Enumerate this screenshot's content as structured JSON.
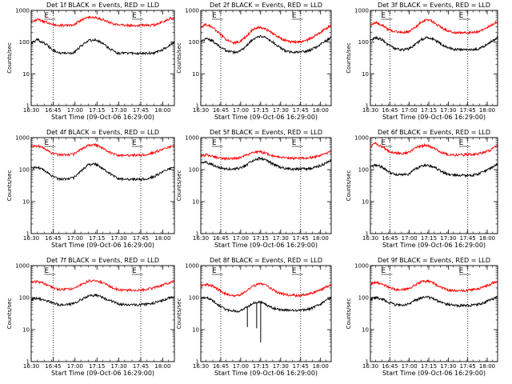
{
  "chart_data": {
    "type": "line",
    "grid": false,
    "yscale": "log",
    "ylim": [
      1,
      1000
    ],
    "ylabel": "Counts/sec",
    "xlabel": "Start Time (09-Oct-06 16:29:00)",
    "x_tick_labels": [
      "16:30",
      "16:45",
      "17:00",
      "17:15",
      "17:30",
      "17:45",
      "18:00"
    ],
    "y_tick_labels": [
      "1",
      "10",
      "100",
      "1000"
    ],
    "xlim_minutes_after_start": [
      1,
      99
    ],
    "marker_label": "E",
    "colors": {
      "events": "#000000",
      "lld": "#ff0000",
      "markers": "#000000"
    },
    "panels": [
      {
        "title": "Det 1f BLACK = Events, RED = LLD",
        "markers": [
          16,
          76
        ],
        "events": {
          "x": [
            1,
            5,
            10,
            15,
            20,
            25,
            30,
            35,
            40,
            45,
            50,
            55,
            60,
            65,
            70,
            75,
            80,
            85,
            90,
            95,
            99
          ],
          "y": [
            90,
            120,
            95,
            60,
            45,
            45,
            45,
            75,
            110,
            120,
            90,
            60,
            45,
            45,
            45,
            45,
            45,
            45,
            55,
            75,
            100
          ]
        },
        "lld": {
          "x": [
            1,
            5,
            10,
            15,
            20,
            25,
            30,
            35,
            40,
            45,
            50,
            55,
            60,
            65,
            70,
            75,
            80,
            85,
            90,
            95,
            99
          ],
          "y": [
            420,
            520,
            450,
            360,
            340,
            340,
            350,
            480,
            600,
            620,
            520,
            400,
            350,
            340,
            340,
            340,
            340,
            350,
            420,
            520,
            600
          ]
        }
      },
      {
        "title": "Det 2f BLACK = Events, RED = LLD",
        "markers": [
          16,
          76
        ],
        "events": {
          "x": [
            1,
            5,
            10,
            15,
            20,
            25,
            30,
            35,
            40,
            45,
            50,
            55,
            60,
            65,
            70,
            75,
            80,
            85,
            90,
            95,
            99
          ],
          "y": [
            100,
            130,
            110,
            75,
            55,
            48,
            50,
            75,
            120,
            155,
            140,
            100,
            70,
            52,
            48,
            48,
            50,
            60,
            80,
            110,
            140
          ]
        },
        "lld": {
          "x": [
            1,
            5,
            10,
            15,
            20,
            25,
            30,
            35,
            40,
            45,
            50,
            55,
            60,
            65,
            70,
            75,
            80,
            85,
            90,
            95,
            99
          ],
          "y": [
            290,
            360,
            300,
            190,
            120,
            95,
            100,
            150,
            250,
            300,
            260,
            190,
            140,
            110,
            100,
            100,
            110,
            140,
            190,
            270,
            340
          ]
        }
      },
      {
        "title": "Det 3f BLACK = Events, RED = LLD",
        "markers": [
          16,
          76
        ],
        "events": {
          "x": [
            1,
            5,
            10,
            15,
            20,
            25,
            30,
            35,
            40,
            45,
            50,
            55,
            60,
            65,
            70,
            75,
            80,
            85,
            90,
            95,
            99
          ],
          "y": [
            110,
            140,
            120,
            80,
            62,
            58,
            60,
            80,
            120,
            140,
            120,
            90,
            70,
            60,
            58,
            58,
            58,
            62,
            80,
            110,
            140
          ]
        },
        "lld": {
          "x": [
            1,
            5,
            10,
            15,
            20,
            25,
            30,
            35,
            40,
            45,
            50,
            55,
            60,
            65,
            70,
            75,
            80,
            85,
            90,
            95,
            99
          ],
          "y": [
            330,
            420,
            340,
            250,
            210,
            200,
            210,
            280,
            430,
            520,
            420,
            300,
            230,
            200,
            195,
            195,
            200,
            220,
            280,
            360,
            440
          ]
        }
      },
      {
        "title": "Det 4f BLACK = Events, RED = LLD",
        "markers": [
          16,
          76
        ],
        "events": {
          "x": [
            1,
            5,
            10,
            15,
            20,
            25,
            30,
            35,
            40,
            45,
            50,
            55,
            60,
            65,
            70,
            75,
            80,
            85,
            90,
            95,
            99
          ],
          "y": [
            110,
            120,
            95,
            65,
            50,
            50,
            55,
            90,
            140,
            150,
            110,
            75,
            55,
            50,
            50,
            50,
            52,
            60,
            80,
            100,
            120
          ]
        },
        "lld": {
          "x": [
            1,
            5,
            10,
            15,
            20,
            25,
            30,
            35,
            40,
            45,
            50,
            55,
            60,
            65,
            70,
            75,
            80,
            85,
            90,
            95,
            99
          ],
          "y": [
            520,
            560,
            460,
            330,
            290,
            285,
            300,
            430,
            560,
            600,
            480,
            340,
            290,
            280,
            280,
            285,
            300,
            340,
            410,
            480,
            560
          ]
        }
      },
      {
        "title": "Det 5f BLACK = Events, RED = LLD",
        "markers": [
          16,
          76
        ],
        "events": {
          "x": [
            1,
            5,
            10,
            15,
            20,
            25,
            30,
            35,
            40,
            45,
            50,
            55,
            60,
            65,
            70,
            75,
            80,
            85,
            90,
            95,
            99
          ],
          "y": [
            160,
            170,
            140,
            115,
            105,
            105,
            110,
            140,
            190,
            230,
            200,
            150,
            120,
            108,
            105,
            105,
            105,
            110,
            130,
            160,
            200
          ]
        },
        "lld": {
          "x": [
            1,
            5,
            10,
            15,
            20,
            25,
            30,
            35,
            40,
            45,
            50,
            55,
            60,
            65,
            70,
            75,
            80,
            85,
            90,
            95,
            99
          ],
          "y": [
            260,
            290,
            260,
            230,
            225,
            225,
            235,
            280,
            340,
            370,
            320,
            270,
            240,
            230,
            228,
            228,
            230,
            240,
            270,
            310,
            370
          ]
        }
      },
      {
        "title": "Det 6f BLACK = Events, RED = LLD",
        "markers": [
          16,
          76
        ],
        "events": {
          "x": [
            1,
            5,
            10,
            15,
            20,
            25,
            30,
            35,
            40,
            45,
            50,
            55,
            60,
            65,
            70,
            75,
            80,
            85,
            90,
            95,
            99
          ],
          "y": [
            120,
            140,
            120,
            85,
            70,
            68,
            72,
            100,
            130,
            140,
            120,
            90,
            72,
            68,
            66,
            66,
            68,
            75,
            95,
            120,
            150
          ]
        },
        "lld": {
          "x": [
            1,
            5,
            10,
            15,
            20,
            25,
            30,
            35,
            40,
            45,
            50,
            55,
            60,
            65,
            70,
            75,
            80,
            85,
            90,
            95,
            99
          ],
          "y": [
            520,
            660,
            520,
            380,
            330,
            320,
            340,
            450,
            560,
            580,
            470,
            350,
            300,
            290,
            290,
            295,
            300,
            320,
            360,
            440,
            560
          ]
        }
      },
      {
        "title": "Det 7f BLACK = Events, RED = LLD",
        "markers": [
          16,
          76
        ],
        "events": {
          "x": [
            1,
            5,
            10,
            15,
            20,
            25,
            30,
            35,
            40,
            45,
            50,
            55,
            60,
            65,
            70,
            75,
            80,
            85,
            90,
            95,
            99
          ],
          "y": [
            90,
            95,
            85,
            70,
            60,
            60,
            65,
            85,
            110,
            120,
            100,
            80,
            65,
            60,
            60,
            60,
            62,
            68,
            80,
            95,
            110
          ]
        },
        "lld": {
          "x": [
            1,
            5,
            10,
            15,
            20,
            25,
            30,
            35,
            40,
            45,
            50,
            55,
            60,
            65,
            70,
            75,
            80,
            85,
            90,
            95,
            99
          ],
          "y": [
            300,
            320,
            280,
            210,
            180,
            180,
            190,
            250,
            330,
            350,
            290,
            220,
            180,
            170,
            170,
            172,
            180,
            200,
            240,
            290,
            330
          ]
        }
      },
      {
        "title": "Det 8f BLACK = Events, RED = LLD",
        "markers": [
          16,
          76
        ],
        "events": {
          "x": [
            1,
            5,
            10,
            15,
            20,
            25,
            30,
            35,
            40,
            45,
            50,
            55,
            60,
            65,
            70,
            75,
            80,
            85,
            90,
            95,
            99
          ],
          "y": [
            95,
            100,
            80,
            55,
            42,
            38,
            38,
            50,
            65,
            75,
            60,
            48,
            42,
            40,
            40,
            40,
            42,
            48,
            60,
            80,
            100
          ]
        },
        "lld": {
          "x": [
            1,
            5,
            10,
            15,
            20,
            25,
            30,
            35,
            40,
            45,
            50,
            55,
            60,
            65,
            70,
            75,
            80,
            85,
            90,
            95,
            99
          ],
          "y": [
            240,
            260,
            230,
            170,
            130,
            115,
            120,
            160,
            230,
            270,
            240,
            180,
            140,
            122,
            118,
            118,
            125,
            140,
            170,
            210,
            250
          ]
        },
        "dropouts": [
          {
            "x": 36,
            "y": 12
          },
          {
            "x": 43,
            "y": 11
          },
          {
            "x": 45,
            "y": 80
          },
          {
            "x": 46,
            "y": 4
          }
        ]
      },
      {
        "title": "Det 9f BLACK = Events, RED = LLD",
        "markers": [
          16,
          76
        ],
        "events": {
          "x": [
            1,
            5,
            10,
            15,
            20,
            25,
            30,
            35,
            40,
            45,
            50,
            55,
            60,
            65,
            70,
            75,
            80,
            85,
            90,
            95,
            99
          ],
          "y": [
            90,
            100,
            90,
            72,
            60,
            58,
            62,
            80,
            100,
            105,
            90,
            72,
            62,
            58,
            57,
            57,
            58,
            62,
            75,
            90,
            105
          ]
        },
        "lld": {
          "x": [
            1,
            5,
            10,
            15,
            20,
            25,
            30,
            35,
            40,
            45,
            50,
            55,
            60,
            65,
            70,
            75,
            80,
            85,
            90,
            95,
            99
          ],
          "y": [
            260,
            300,
            270,
            210,
            180,
            175,
            185,
            240,
            310,
            330,
            280,
            210,
            175,
            165,
            165,
            168,
            175,
            195,
            230,
            280,
            330
          ]
        }
      }
    ]
  }
}
